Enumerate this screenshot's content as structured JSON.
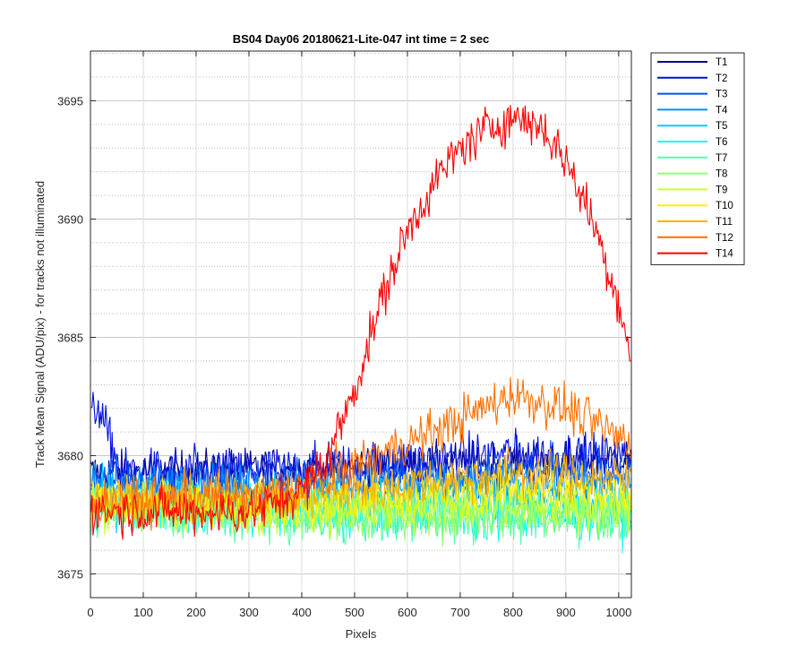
{
  "chart_data": {
    "type": "line",
    "title": "BS04 Day06 20180621-Lite-047 int time = 2 sec",
    "xlabel": "Pixels",
    "ylabel": "Track Mean Signal (ADU/pix) - for tracks not illuminated",
    "xlim": [
      0,
      1024
    ],
    "ylim": [
      3674,
      3697.1
    ],
    "xticks": [
      0,
      100,
      200,
      300,
      400,
      500,
      600,
      700,
      800,
      900,
      1000
    ],
    "yticks": [
      3675,
      3680,
      3685,
      3690,
      3695
    ],
    "grid": "major and minor, dotted",
    "legend_position": "outside top-right",
    "series": [
      {
        "name": "T1",
        "color": "#00008f",
        "profile": [
          [
            0,
            3679.3
          ],
          [
            40,
            3679.3
          ],
          [
            400,
            3679.5
          ],
          [
            1024,
            3679.9
          ]
        ],
        "noise": 0.8
      },
      {
        "name": "T2",
        "color": "#0010e0",
        "profile": [
          [
            0,
            3681.5
          ],
          [
            15,
            3682.2
          ],
          [
            30,
            3681.0
          ],
          [
            60,
            3679.3
          ],
          [
            400,
            3679.4
          ],
          [
            800,
            3680.1
          ],
          [
            1024,
            3679.9
          ]
        ],
        "noise": 0.9
      },
      {
        "name": "T3",
        "color": "#0050ff",
        "profile": [
          [
            0,
            3679.0
          ],
          [
            400,
            3679.0
          ],
          [
            1024,
            3679.3
          ]
        ],
        "noise": 0.9
      },
      {
        "name": "T4",
        "color": "#0090ff",
        "profile": [
          [
            0,
            3678.7
          ],
          [
            400,
            3678.6
          ],
          [
            1024,
            3678.8
          ]
        ],
        "noise": 0.9
      },
      {
        "name": "T5",
        "color": "#00cfff",
        "profile": [
          [
            0,
            3678.2
          ],
          [
            400,
            3678.1
          ],
          [
            1024,
            3678.1
          ]
        ],
        "noise": 1.0
      },
      {
        "name": "T6",
        "color": "#10ffef",
        "profile": [
          [
            0,
            3677.8
          ],
          [
            400,
            3677.5
          ],
          [
            1024,
            3677.5
          ]
        ],
        "noise": 1.0
      },
      {
        "name": "T7",
        "color": "#50ffaf",
        "profile": [
          [
            0,
            3677.8
          ],
          [
            400,
            3677.4
          ],
          [
            1024,
            3677.5
          ]
        ],
        "noise": 1.0
      },
      {
        "name": "T8",
        "color": "#8fff70",
        "profile": [
          [
            0,
            3677.9
          ],
          [
            400,
            3677.5
          ],
          [
            1024,
            3677.6
          ]
        ],
        "noise": 1.0
      },
      {
        "name": "T9",
        "color": "#cfff30",
        "profile": [
          [
            0,
            3678.0
          ],
          [
            400,
            3677.7
          ],
          [
            1024,
            3677.8
          ]
        ],
        "noise": 0.9
      },
      {
        "name": "T10",
        "color": "#ffef00",
        "profile": [
          [
            0,
            3678.1
          ],
          [
            400,
            3677.9
          ],
          [
            800,
            3678.6
          ],
          [
            1024,
            3678.4
          ]
        ],
        "noise": 0.9
      },
      {
        "name": "T11",
        "color": "#ffb000",
        "profile": [
          [
            0,
            3678.2
          ],
          [
            400,
            3678.3
          ],
          [
            800,
            3679.3
          ],
          [
            1024,
            3679.0
          ]
        ],
        "noise": 0.9
      },
      {
        "name": "T12",
        "color": "#ff7000",
        "profile": [
          [
            0,
            3678.0
          ],
          [
            350,
            3678.3
          ],
          [
            500,
            3679.6
          ],
          [
            650,
            3681.0
          ],
          [
            800,
            3682.6
          ],
          [
            900,
            3682.0
          ],
          [
            1024,
            3680.5
          ]
        ],
        "noise": 0.9
      },
      {
        "name": "T14",
        "color": "#ff0000",
        "profile": [
          [
            0,
            3677.7
          ],
          [
            300,
            3677.6
          ],
          [
            400,
            3678.5
          ],
          [
            450,
            3680.0
          ],
          [
            500,
            3682.8
          ],
          [
            550,
            3686.5
          ],
          [
            600,
            3689.5
          ],
          [
            650,
            3691.5
          ],
          [
            700,
            3693.0
          ],
          [
            750,
            3693.8
          ],
          [
            800,
            3694.3
          ],
          [
            850,
            3694.0
          ],
          [
            900,
            3692.5
          ],
          [
            950,
            3690.0
          ],
          [
            1000,
            3686.5
          ],
          [
            1024,
            3684.0
          ]
        ],
        "noise": 0.9
      }
    ]
  }
}
